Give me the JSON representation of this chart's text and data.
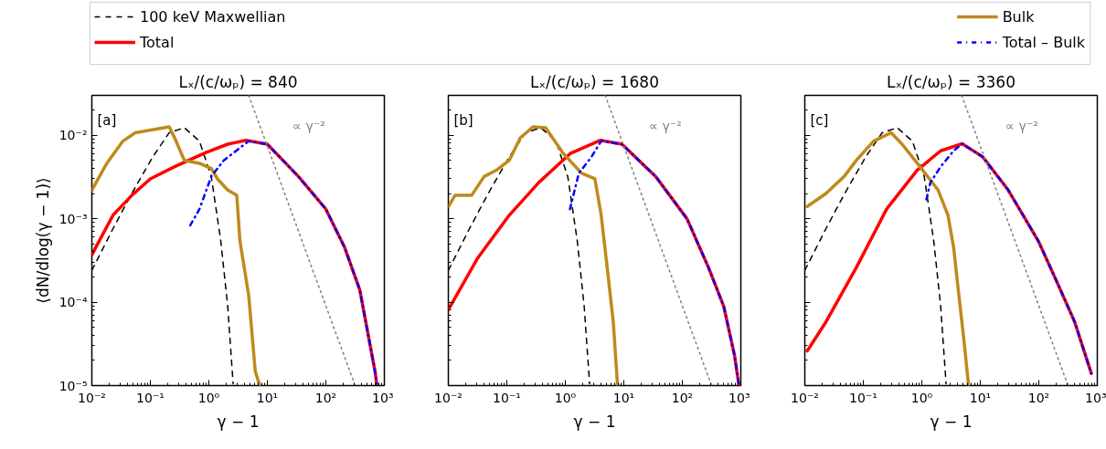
{
  "chart_data": [
    {
      "type": "line",
      "title": "Lₓ/(c/ωₚ) = 840",
      "xlabel": "γ − 1",
      "ylabel": "⟨dN/dlog(γ − 1)⟩",
      "log": "xy",
      "grid": false,
      "legend": "top",
      "xlim": [
        0.01,
        1000
      ],
      "ylim": [
        1e-05,
        0.03
      ],
      "xticks": [
        {
          "value": 0.01,
          "label": "10⁻²"
        },
        {
          "value": 0.1,
          "label": "10⁻¹"
        },
        {
          "value": 1,
          "label": "10⁰"
        },
        {
          "value": 10,
          "label": "10¹"
        },
        {
          "value": 100,
          "label": "10²"
        },
        {
          "value": 1000,
          "label": "10³"
        }
      ],
      "yticks": [
        {
          "value": 1e-05,
          "label": "10⁻⁵"
        },
        {
          "value": 0.0001,
          "label": "10⁻⁴"
        },
        {
          "value": 0.001,
          "label": "10⁻³"
        },
        {
          "value": 0.01,
          "label": "10⁻²"
        }
      ],
      "annotations": [
        "[a]",
        "∝ γ⁻²"
      ],
      "series": [
        {
          "name": "100 keV Maxwellian",
          "color": "#000000",
          "line_style": "dashed",
          "x": [
            0.01,
            0.023,
            0.048,
            0.11,
            0.21,
            0.38,
            0.69,
            1.1,
            1.6,
            2.1,
            2.6
          ],
          "values": [
            0.00024,
            0.00076,
            0.002,
            0.0055,
            0.0107,
            0.0123,
            0.0085,
            0.0032,
            0.00054,
            8.9e-05,
            1.05e-05
          ]
        },
        {
          "name": "Total",
          "color": "#ff0000",
          "line_style": "solid",
          "x": [
            0.01,
            0.023,
            0.048,
            0.1,
            0.26,
            0.89,
            2.1,
            4.3,
            10,
            34,
            100,
            210,
            380,
            690,
            740
          ],
          "values": [
            0.00037,
            0.0011,
            0.0019,
            0.003,
            0.0042,
            0.0062,
            0.0078,
            0.0087,
            0.0078,
            0.0032,
            0.0013,
            0.00045,
            0.00014,
            1.5e-05,
            1.05e-05
          ]
        },
        {
          "name": "Bulk",
          "color": "#bf8a1a",
          "line_style": "solid",
          "x": [
            0.01,
            0.018,
            0.034,
            0.055,
            0.21,
            0.26,
            0.38,
            0.69,
            1.1,
            1.4,
            2.1,
            3.0,
            3.4,
            4.8,
            6.2,
            7.4
          ],
          "values": [
            0.0022,
            0.0046,
            0.0085,
            0.0107,
            0.0126,
            0.0093,
            0.005,
            0.0046,
            0.004,
            0.003,
            0.0022,
            0.0019,
            0.00054,
            0.00012,
            1.5e-05,
            1e-05
          ]
        },
        {
          "name": "Total – Bulk",
          "color": "#0000ff",
          "line_style": "dashdot",
          "x": [
            0.48,
            0.69,
            1.1,
            1.8,
            4.8,
            10,
            34,
            100,
            210,
            380,
            690,
            740
          ],
          "values": [
            0.00083,
            0.0013,
            0.0032,
            0.005,
            0.0085,
            0.0078,
            0.0032,
            0.0013,
            0.00045,
            0.00014,
            1.5e-05,
            1.05e-05
          ]
        },
        {
          "color": "#808080",
          "line_style": "dotted",
          "x": [
            4.8,
            316
          ],
          "values": [
            0.03,
            1e-05
          ]
        }
      ]
    },
    {
      "type": "line",
      "title": "Lₓ/(c/ωₚ) = 1680",
      "xlabel": "γ − 1",
      "log": "xy",
      "grid": false,
      "tick_labels": "x",
      "xlim": [
        0.01,
        1000
      ],
      "ylim": [
        1e-05,
        0.03
      ],
      "xticks": [
        {
          "value": 0.01,
          "label": "10⁻²"
        },
        {
          "value": 0.1,
          "label": "10⁻¹"
        },
        {
          "value": 1,
          "label": "10⁰"
        },
        {
          "value": 10,
          "label": "10¹"
        },
        {
          "value": 100,
          "label": "10²"
        },
        {
          "value": 1000,
          "label": "10³"
        }
      ],
      "yticks": [
        {
          "value": 1e-05,
          "label": null
        },
        {
          "value": 0.0001,
          "label": null
        },
        {
          "value": 0.001,
          "label": null
        },
        {
          "value": 0.01,
          "label": null
        }
      ],
      "annotations": [
        "[b]",
        "∝ γ⁻²"
      ],
      "series": [
        {
          "color": "#000000",
          "line_style": "dashed",
          "x": [
            0.01,
            0.023,
            0.048,
            0.11,
            0.21,
            0.38,
            0.69,
            1.1,
            1.6,
            2.1,
            2.6
          ],
          "values": [
            0.00024,
            0.00076,
            0.002,
            0.0055,
            0.0107,
            0.0123,
            0.0085,
            0.0032,
            0.00054,
            8.9e-05,
            1.05e-05
          ]
        },
        {
          "color": "#ff0000",
          "line_style": "solid",
          "x": [
            0.01,
            0.032,
            0.11,
            0.35,
            1.2,
            4.0,
            9.3,
            35,
            120,
            280,
            510,
            780,
            930
          ],
          "values": [
            8.1e-05,
            0.00034,
            0.0011,
            0.0027,
            0.006,
            0.0087,
            0.0078,
            0.0032,
            0.001,
            0.00026,
            8.9e-05,
            2.3e-05,
            1e-05
          ]
        },
        {
          "color": "#bf8a1a",
          "line_style": "solid",
          "x": [
            0.01,
            0.013,
            0.025,
            0.041,
            0.066,
            0.11,
            0.17,
            0.28,
            0.46,
            0.93,
            1.9,
            3.2,
            4.1,
            5.1,
            6.6,
            7.8
          ],
          "values": [
            0.0014,
            0.0019,
            0.0019,
            0.0032,
            0.0038,
            0.005,
            0.0093,
            0.0126,
            0.0123,
            0.006,
            0.0035,
            0.003,
            0.0011,
            0.00029,
            5.8e-05,
            1e-05
          ]
        },
        {
          "color": "#0000ff",
          "line_style": "dashdot",
          "x": [
            1.2,
            1.7,
            2.8,
            4.1,
            9.3,
            35,
            120,
            280,
            510,
            780,
            930
          ],
          "values": [
            0.0013,
            0.0035,
            0.0055,
            0.0085,
            0.0078,
            0.0032,
            0.001,
            0.00026,
            8.9e-05,
            2.3e-05,
            1e-05
          ]
        },
        {
          "color": "#808080",
          "line_style": "dotted",
          "x": [
            4.8,
            316
          ],
          "values": [
            0.03,
            1e-05
          ]
        }
      ]
    },
    {
      "type": "line",
      "title": "Lₓ/(c/ωₚ) = 3360",
      "xlabel": "γ − 1",
      "log": "xy",
      "grid": false,
      "tick_labels": "x",
      "xlim": [
        0.01,
        1000
      ],
      "ylim": [
        1e-05,
        0.03
      ],
      "xticks": [
        {
          "value": 0.01,
          "label": "10⁻²"
        },
        {
          "value": 0.1,
          "label": "10⁻¹"
        },
        {
          "value": 1,
          "label": "10⁰"
        },
        {
          "value": 10,
          "label": "10¹"
        },
        {
          "value": 100,
          "label": "10²"
        },
        {
          "value": 1000,
          "label": "10³"
        }
      ],
      "yticks": [
        {
          "value": 1e-05,
          "label": null
        },
        {
          "value": 0.0001,
          "label": null
        },
        {
          "value": 0.001,
          "label": null
        },
        {
          "value": 0.01,
          "label": null
        }
      ],
      "annotations": [
        "[c]",
        "∝ γ⁻²"
      ],
      "series": [
        {
          "color": "#000000",
          "line_style": "dashed",
          "x": [
            0.01,
            0.023,
            0.048,
            0.11,
            0.21,
            0.38,
            0.69,
            1.1,
            1.6,
            2.1,
            2.6
          ],
          "values": [
            0.00024,
            0.00076,
            0.002,
            0.0055,
            0.0107,
            0.0123,
            0.0085,
            0.0032,
            0.00054,
            8.9e-05,
            1.05e-05
          ]
        },
        {
          "color": "#ff0000",
          "line_style": "solid",
          "x": [
            0.011,
            0.023,
            0.076,
            0.25,
            0.83,
            2.1,
            4.9,
            11,
            30,
            98,
            200,
            410,
            790
          ],
          "values": [
            2.6e-05,
            5.8e-05,
            0.00026,
            0.0013,
            0.0038,
            0.0065,
            0.0079,
            0.0055,
            0.0022,
            0.00054,
            0.00018,
            5.8e-05,
            1.4e-05
          ]
        },
        {
          "color": "#bf8a1a",
          "line_style": "solid",
          "x": [
            0.011,
            0.023,
            0.047,
            0.076,
            0.15,
            0.3,
            0.46,
            0.93,
            1.9,
            2.8,
            3.5,
            4.2,
            5.2,
            6.3
          ],
          "values": [
            0.0014,
            0.002,
            0.0032,
            0.005,
            0.0085,
            0.0107,
            0.0078,
            0.0042,
            0.0022,
            0.0011,
            0.00045,
            0.00014,
            3.7e-05,
            1e-05
          ]
        },
        {
          "color": "#0000ff",
          "line_style": "dashdot",
          "x": [
            1.2,
            1.4,
            2.1,
            3.5,
            4.9,
            11,
            30,
            98,
            200,
            410,
            790
          ],
          "values": [
            0.0017,
            0.0027,
            0.0042,
            0.0065,
            0.0079,
            0.0055,
            0.0022,
            0.00054,
            0.00018,
            5.8e-05,
            1.4e-05
          ]
        },
        {
          "color": "#808080",
          "line_style": "dotted",
          "x": [
            4.8,
            316
          ],
          "values": [
            0.03,
            1e-05
          ]
        }
      ]
    }
  ]
}
